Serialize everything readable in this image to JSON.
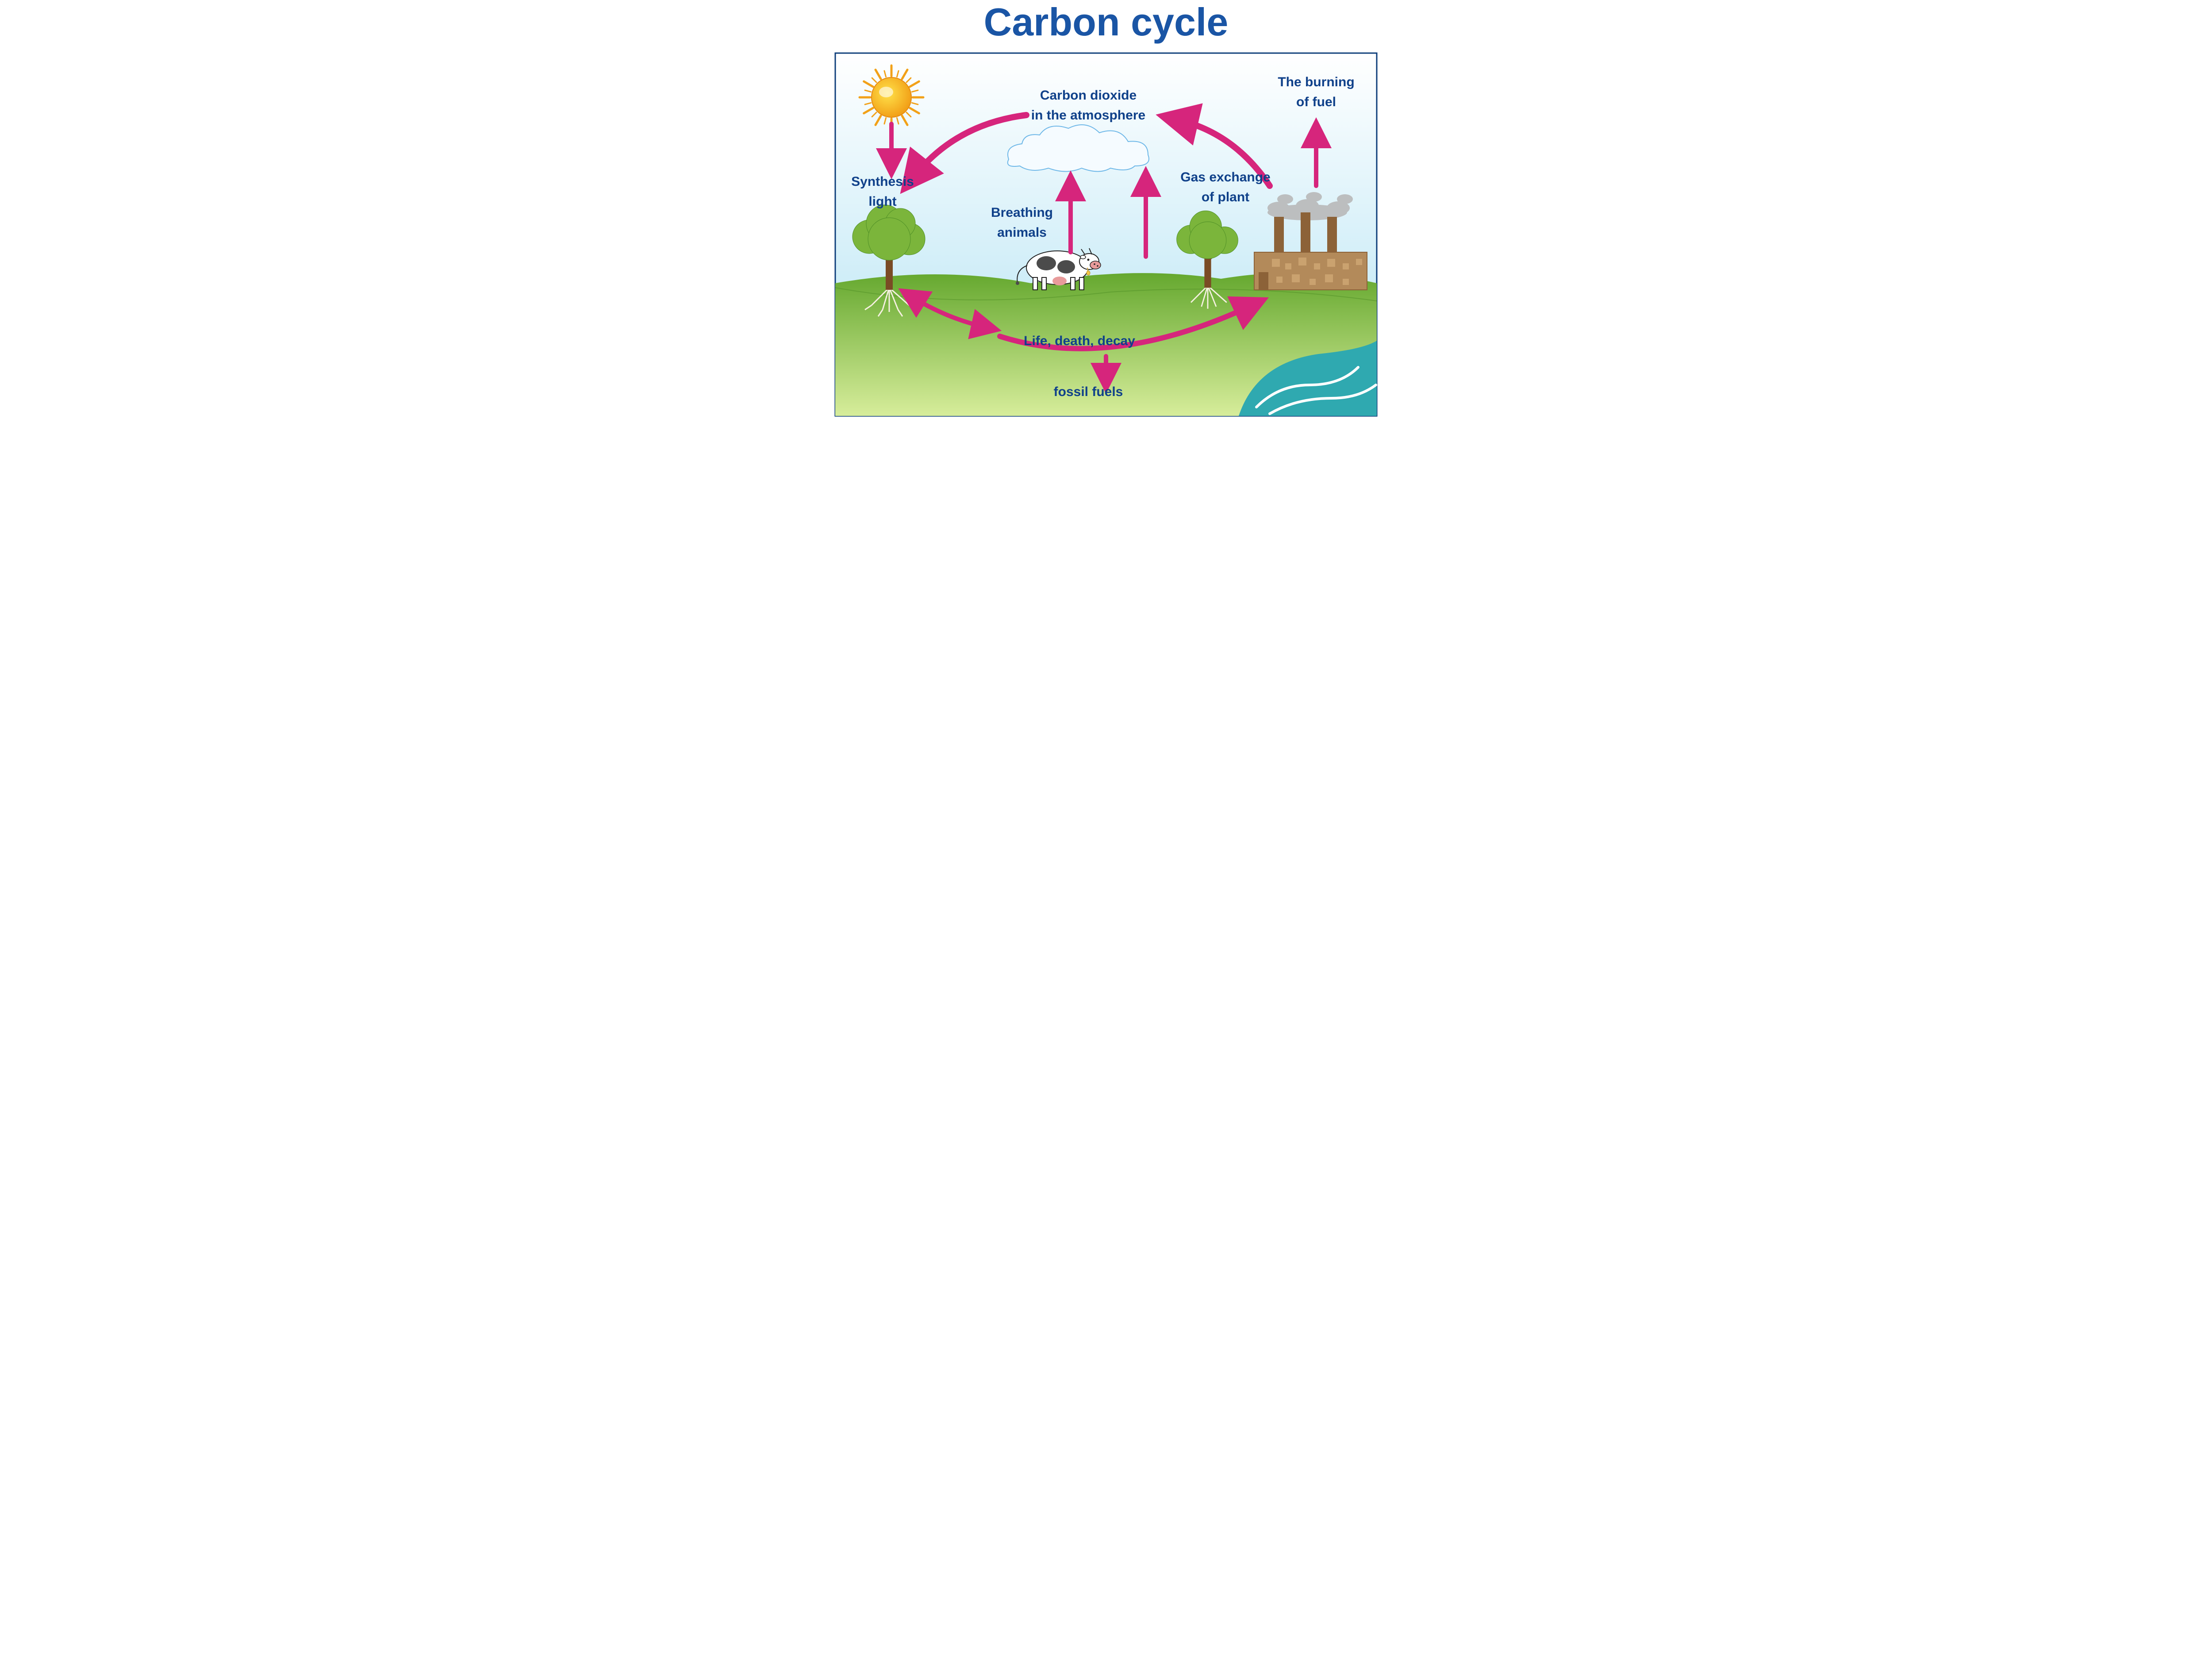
{
  "diagram": {
    "type": "infographic",
    "title": "Carbon cycle",
    "title_color": "#1a55a5",
    "title_fontsize": 88,
    "label_color": "#10418a",
    "label_fontsize": 30,
    "arrow_color": "#d6257c",
    "sky_top_color": "#ffffff",
    "sky_bottom_color": "#b3e3f4",
    "grass_top_color": "#65a82f",
    "grass_bottom_color": "#d7ed9b",
    "water_color": "#2fa9b0",
    "water_wave_color": "#ffffff",
    "border_color": "#0d3d7a",
    "tree_foliage": "#7bb53b",
    "tree_trunk": "#7a4b25",
    "tree_root": "#f5f0e0",
    "factory_wall": "#b38a5a",
    "factory_dark": "#8c6238",
    "smoke_color": "#b9b9b9",
    "cow_body": "#ffffff",
    "cow_spot": "#4b4b4b",
    "cow_pink": "#e89b9b",
    "sun_outer": "#f2a118",
    "sun_inner": "#ffe24a",
    "cloud_line": "#6fb8e8",
    "labels": {
      "co2_line1": "Carbon dioxide",
      "co2_line2": "in the atmosphere",
      "burning_line1": "The burning",
      "burning_line2": "of fuel",
      "gas_line1": "Gas exchange",
      "gas_line2": "of plant",
      "breathing_line1": "Breathing",
      "breathing_line2": "animals",
      "synth_line1": "Synthesis",
      "synth_line2": "light",
      "life": "Life, death, decay",
      "fossil": "fossil fuels"
    }
  }
}
